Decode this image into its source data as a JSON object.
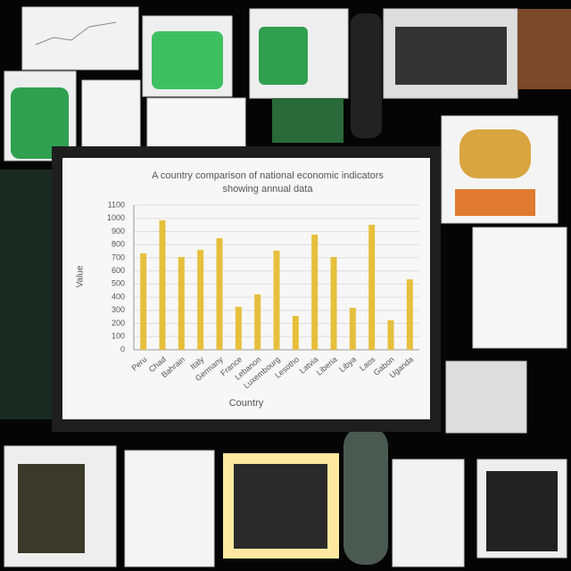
{
  "chart_data": {
    "type": "bar",
    "title": "A country comparison of national economic indicators",
    "subtitle": "showing annual data",
    "x_label": "Country",
    "y_label": "Value",
    "categories": [
      "Peru",
      "Chad",
      "Bahrain",
      "Italy",
      "Germany",
      "France",
      "Lebanon",
      "Luxembourg",
      "Lesotho",
      "Latvia",
      "Liberia",
      "Libya",
      "Laos",
      "Gabon",
      "Uganda"
    ],
    "values": [
      733,
      985,
      706,
      760,
      849,
      326,
      421,
      754,
      258,
      876,
      706,
      319,
      951,
      224,
      536
    ],
    "color": "#e6bf3c",
    "ylim": [
      0,
      1100
    ],
    "yticks": [
      0,
      100,
      200,
      300,
      400,
      500,
      600,
      700,
      800,
      900,
      1000,
      1100
    ],
    "grid": true
  }
}
